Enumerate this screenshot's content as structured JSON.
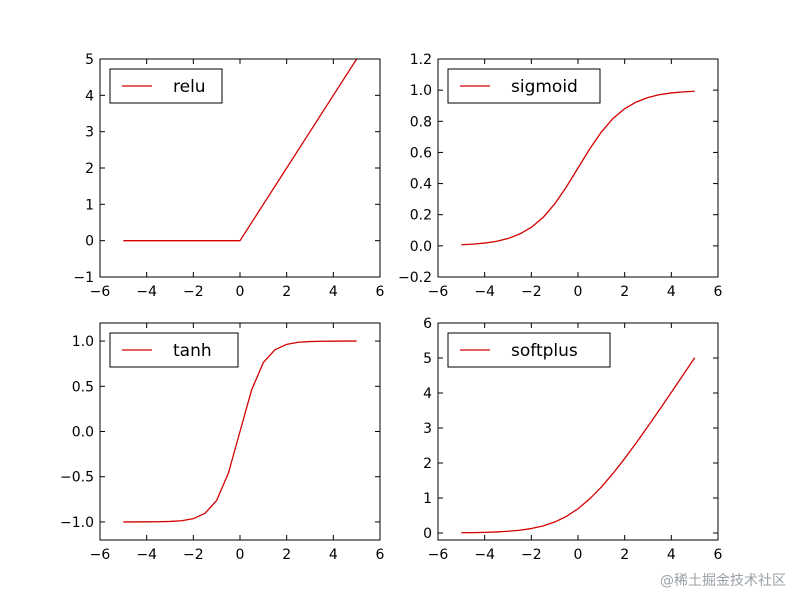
{
  "chart_data": [
    {
      "type": "line",
      "title": "",
      "xlabel": "",
      "ylabel": "",
      "xlim": [
        -6,
        6
      ],
      "ylim": [
        -1,
        5
      ],
      "xticks": [
        -6,
        -4,
        -2,
        0,
        2,
        4,
        6
      ],
      "yticks": [
        -1,
        0,
        1,
        2,
        3,
        4,
        5
      ],
      "xtick_labels": [
        "−6",
        "−4",
        "−2",
        "0",
        "2",
        "4",
        "6"
      ],
      "ytick_labels": [
        "−1",
        "0",
        "1",
        "2",
        "3",
        "4",
        "5"
      ],
      "grid": false,
      "legend_position": "top-left",
      "series": [
        {
          "name": "relu",
          "color": "#d40000",
          "x": [
            -5,
            -4,
            -3,
            -2,
            -1,
            0,
            1,
            2,
            3,
            4,
            5
          ],
          "y": [
            0,
            0,
            0,
            0,
            0,
            0,
            1,
            2,
            3,
            4,
            5
          ]
        }
      ]
    },
    {
      "type": "line",
      "title": "",
      "xlabel": "",
      "ylabel": "",
      "xlim": [
        -6,
        6
      ],
      "ylim": [
        -0.2,
        1.2
      ],
      "xticks": [
        -6,
        -4,
        -2,
        0,
        2,
        4,
        6
      ],
      "yticks": [
        -0.2,
        0.0,
        0.2,
        0.4,
        0.6,
        0.8,
        1.0,
        1.2
      ],
      "xtick_labels": [
        "−6",
        "−4",
        "−2",
        "0",
        "2",
        "4",
        "6"
      ],
      "ytick_labels": [
        "−0.2",
        "0.0",
        "0.2",
        "0.4",
        "0.6",
        "0.8",
        "1.0",
        "1.2"
      ],
      "grid": false,
      "legend_position": "top-left",
      "series": [
        {
          "name": "sigmoid",
          "color": "#d40000",
          "x": [
            -5,
            -4.5,
            -4,
            -3.5,
            -3,
            -2.5,
            -2,
            -1.5,
            -1,
            -0.5,
            0,
            0.5,
            1,
            1.5,
            2,
            2.5,
            3,
            3.5,
            4,
            4.5,
            5
          ],
          "y": [
            0.007,
            0.011,
            0.018,
            0.029,
            0.047,
            0.076,
            0.119,
            0.182,
            0.269,
            0.378,
            0.5,
            0.622,
            0.731,
            0.818,
            0.881,
            0.924,
            0.953,
            0.971,
            0.982,
            0.989,
            0.993
          ]
        }
      ]
    },
    {
      "type": "line",
      "title": "",
      "xlabel": "",
      "ylabel": "",
      "xlim": [
        -6,
        6
      ],
      "ylim": [
        -1.2,
        1.2
      ],
      "xticks": [
        -6,
        -4,
        -2,
        0,
        2,
        4,
        6
      ],
      "yticks": [
        -1.0,
        -0.5,
        0.0,
        0.5,
        1.0
      ],
      "xtick_labels": [
        "−6",
        "−4",
        "−2",
        "0",
        "2",
        "4",
        "6"
      ],
      "ytick_labels": [
        "−1.0",
        "−0.5",
        "0.0",
        "0.5",
        "1.0"
      ],
      "grid": false,
      "legend_position": "top-left",
      "series": [
        {
          "name": "tanh",
          "color": "#d40000",
          "x": [
            -5,
            -4.5,
            -4,
            -3.5,
            -3,
            -2.5,
            -2,
            -1.5,
            -1,
            -0.5,
            0,
            0.5,
            1,
            1.5,
            2,
            2.5,
            3,
            3.5,
            4,
            4.5,
            5
          ],
          "y": [
            -1.0,
            -1.0,
            -0.999,
            -0.998,
            -0.995,
            -0.987,
            -0.964,
            -0.905,
            -0.762,
            -0.462,
            0.0,
            0.462,
            0.762,
            0.905,
            0.964,
            0.987,
            0.995,
            0.998,
            0.999,
            1.0,
            1.0
          ]
        }
      ]
    },
    {
      "type": "line",
      "title": "",
      "xlabel": "",
      "ylabel": "",
      "xlim": [
        -6,
        6
      ],
      "ylim": [
        -0.2,
        6
      ],
      "xticks": [
        -6,
        -4,
        -2,
        0,
        2,
        4,
        6
      ],
      "yticks": [
        0,
        1,
        2,
        3,
        4,
        5,
        6
      ],
      "xtick_labels": [
        "−6",
        "−4",
        "−2",
        "0",
        "2",
        "4",
        "6"
      ],
      "ytick_labels": [
        "0",
        "1",
        "2",
        "3",
        "4",
        "5",
        "6"
      ],
      "grid": false,
      "legend_position": "top-left",
      "series": [
        {
          "name": "softplus",
          "color": "#d40000",
          "x": [
            -5,
            -4.5,
            -4,
            -3.5,
            -3,
            -2.5,
            -2,
            -1.5,
            -1,
            -0.5,
            0,
            0.5,
            1,
            1.5,
            2,
            2.5,
            3,
            3.5,
            4,
            4.5,
            5
          ],
          "y": [
            0.007,
            0.011,
            0.018,
            0.03,
            0.049,
            0.079,
            0.127,
            0.201,
            0.313,
            0.474,
            0.693,
            0.974,
            1.313,
            1.701,
            2.127,
            2.579,
            3.049,
            3.53,
            4.018,
            4.511,
            5.007
          ]
        }
      ]
    }
  ],
  "watermark": "@稀土掘金技术社区"
}
